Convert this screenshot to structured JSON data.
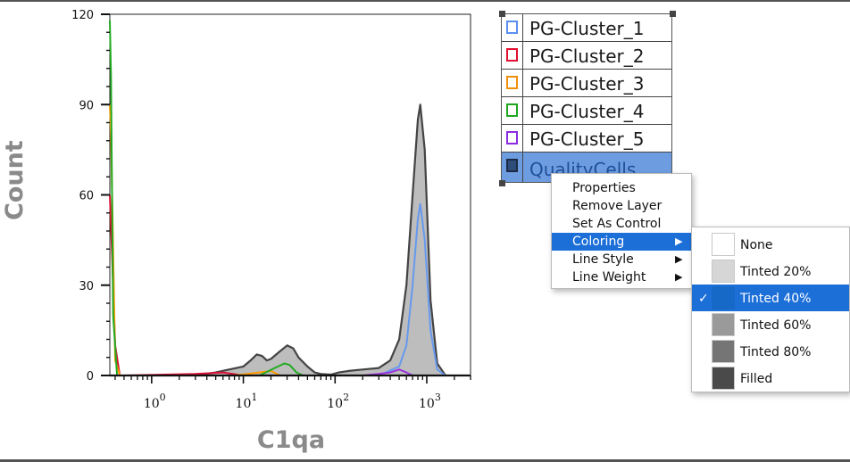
{
  "chart_data": {
    "type": "area",
    "xlabel": "C1qa",
    "ylabel": "Count",
    "x_scale": "log",
    "xlim": [
      0.35,
      3000
    ],
    "ylim": [
      0,
      120
    ],
    "yticks": [
      0,
      30,
      60,
      90,
      120
    ],
    "xticks": [
      {
        "value": 1,
        "base": "10",
        "exp": "0"
      },
      {
        "value": 10,
        "base": "10",
        "exp": "1"
      },
      {
        "value": 100,
        "base": "10",
        "exp": "2"
      },
      {
        "value": 1000,
        "base": "10",
        "exp": "3"
      }
    ],
    "grid": false,
    "series": [
      {
        "name": "QualityCells",
        "color": "#444444",
        "fill": "#bdbdbd",
        "style": "tinted-40",
        "x": [
          3,
          5,
          7,
          10,
          12,
          14,
          16,
          18,
          20,
          25,
          30,
          35,
          40,
          50,
          60,
          70,
          90,
          110,
          140,
          200,
          300,
          400,
          500,
          600,
          700,
          800,
          850,
          950,
          1100,
          1300,
          1600
        ],
        "y": [
          0,
          1,
          2,
          3,
          5,
          7,
          6.5,
          5,
          5.5,
          8,
          10,
          9,
          6,
          3,
          1,
          0.5,
          0.3,
          1,
          1.5,
          2,
          2.5,
          5,
          12,
          30,
          60,
          85,
          90,
          75,
          25,
          4,
          0
        ]
      },
      {
        "name": "PG-Cluster_1",
        "color": "#6699ee",
        "x": [
          300,
          500,
          600,
          700,
          800,
          850,
          950,
          1100,
          1300,
          1600
        ],
        "y": [
          0,
          3,
          10,
          30,
          52,
          57,
          45,
          15,
          2,
          0
        ]
      },
      {
        "name": "PG-Cluster_2",
        "color": "#dd1133",
        "x": [
          0.35,
          0.37,
          0.4,
          0.45,
          0.5,
          3,
          6,
          10
        ],
        "y": [
          60,
          40,
          10,
          0,
          0,
          0.5,
          1,
          0
        ]
      },
      {
        "name": "PG-Cluster_3",
        "color": "#ff9900",
        "x": [
          0.35,
          0.36,
          0.4,
          0.45,
          8,
          15,
          20,
          25
        ],
        "y": [
          90,
          80,
          5,
          0,
          0,
          1,
          1.5,
          0
        ]
      },
      {
        "name": "PG-Cluster_4",
        "color": "#22aa22",
        "x": [
          0.35,
          0.36,
          0.38,
          0.42,
          0.5,
          15,
          22,
          28,
          32,
          38,
          45
        ],
        "y": [
          118,
          100,
          20,
          0,
          0,
          0,
          2.5,
          4,
          3.5,
          1,
          0
        ]
      },
      {
        "name": "PG-Cluster_5",
        "color": "#9933dd",
        "x": [
          200,
          300,
          400,
          500,
          600,
          700
        ],
        "y": [
          0,
          0.5,
          1,
          2,
          1,
          0
        ]
      }
    ]
  },
  "legend": {
    "items": [
      {
        "label": "PG-Cluster_1",
        "color": "#5b8ff0"
      },
      {
        "label": "PG-Cluster_2",
        "color": "#e0102e"
      },
      {
        "label": "PG-Cluster_3",
        "color": "#f08f0a"
      },
      {
        "label": "PG-Cluster_4",
        "color": "#1fa51f"
      },
      {
        "label": "PG-Cluster_5",
        "color": "#8a2be2"
      },
      {
        "label": "QualityCells",
        "color": "#1d2a44",
        "selected": true
      }
    ]
  },
  "context_menu": {
    "items": [
      {
        "label": "Properties",
        "submenu": false
      },
      {
        "label": "Remove Layer",
        "submenu": false
      },
      {
        "label": "Set As Control",
        "submenu": false
      },
      {
        "label": "Coloring",
        "submenu": true,
        "active": true
      },
      {
        "label": "Line Style",
        "submenu": true
      },
      {
        "label": "Line Weight",
        "submenu": true
      }
    ],
    "arrow": "▶"
  },
  "coloring_submenu": {
    "items": [
      {
        "label": "None",
        "swatch": "#ffffff"
      },
      {
        "label": "Tinted 20%",
        "swatch": "#d6d6d6"
      },
      {
        "label": "Tinted 40%",
        "swatch": "#1769c8",
        "checked": true
      },
      {
        "label": "Tinted 60%",
        "swatch": "#9a9a9a"
      },
      {
        "label": "Tinted 80%",
        "swatch": "#757575"
      },
      {
        "label": "Filled",
        "swatch": "#4a4a4a"
      }
    ],
    "check": "✓"
  }
}
